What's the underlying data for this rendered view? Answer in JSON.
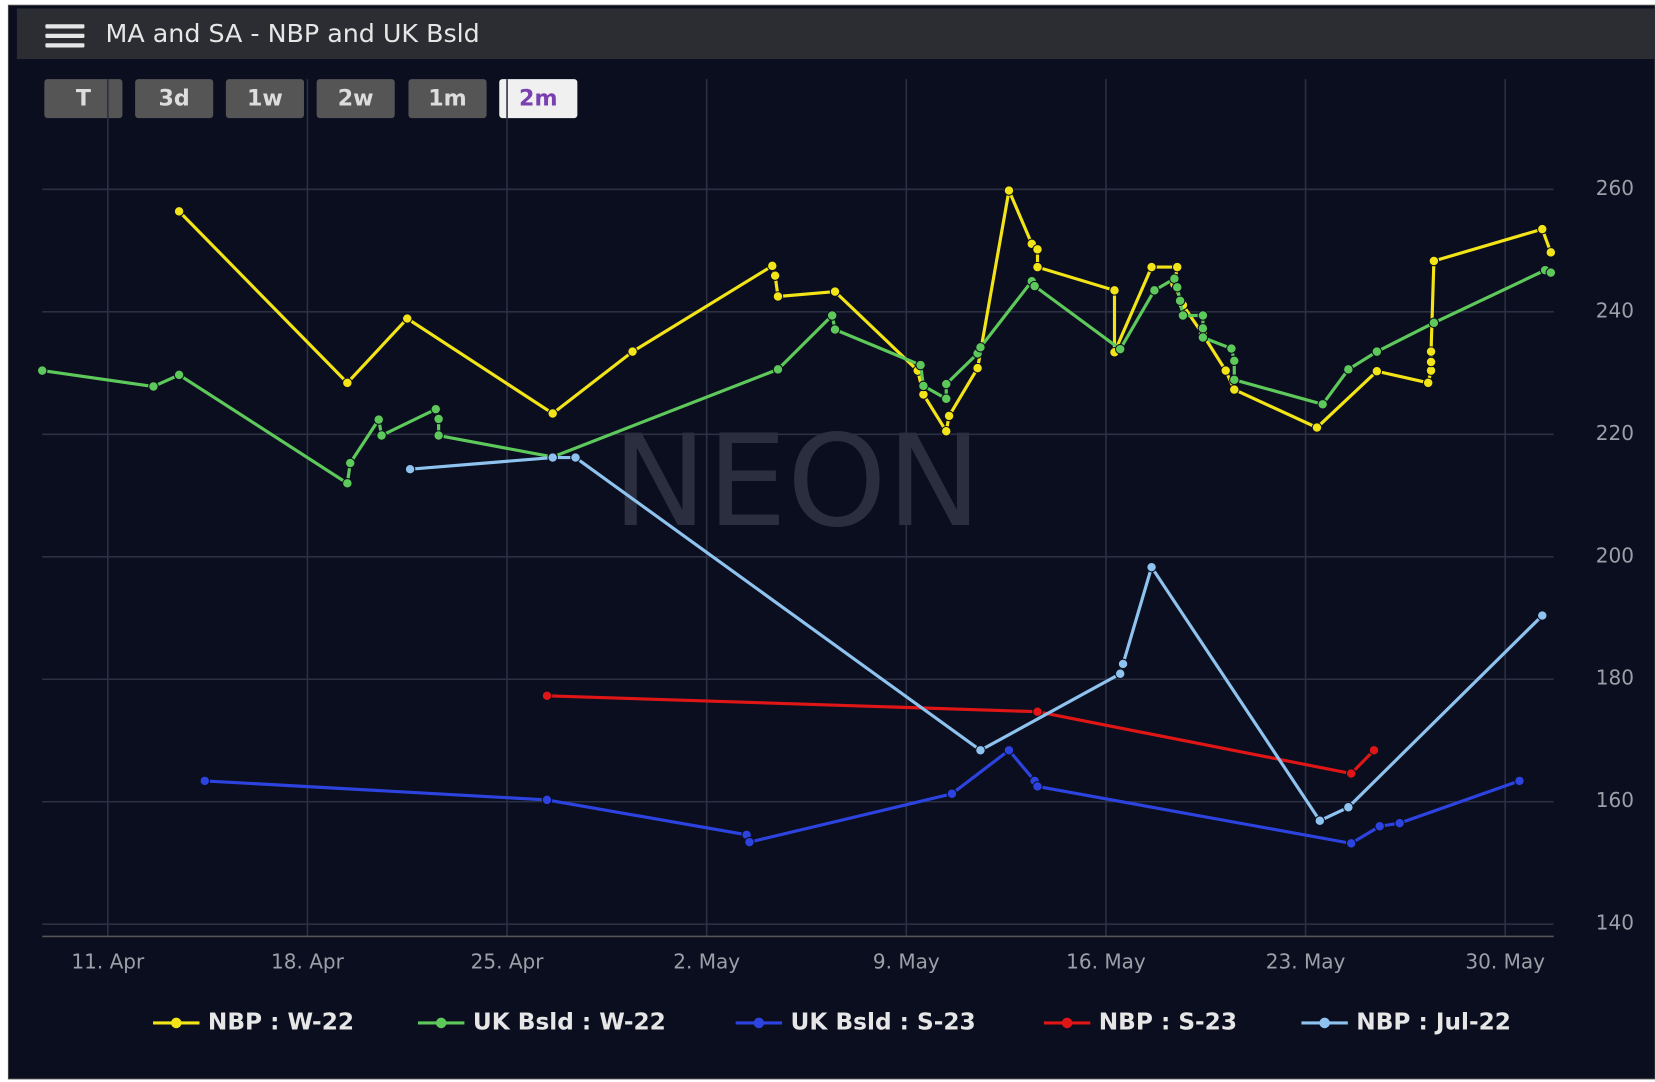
{
  "chart_data": {
    "type": "line",
    "title": "MA and SA - NBP and UK Bsld",
    "range_buttons": [
      "T",
      "3d",
      "1w",
      "2w",
      "1m",
      "2m"
    ],
    "selected_range": 5,
    "watermark": "NEON",
    "xlim": [
      98.7,
      151.7
    ],
    "xticks": [
      {
        "value": 101,
        "label": "11. Apr"
      },
      {
        "value": 108,
        "label": "18. Apr"
      },
      {
        "value": 115,
        "label": "25. Apr"
      },
      {
        "value": 122,
        "label": "2. May"
      },
      {
        "value": 129,
        "label": "9. May"
      },
      {
        "value": 136,
        "label": "16. May"
      },
      {
        "value": 143,
        "label": "23. May"
      },
      {
        "value": 150,
        "label": "30. May"
      }
    ],
    "ylim": [
      138,
      278
    ],
    "yticks": [
      140,
      160,
      180,
      200,
      220,
      240,
      260
    ],
    "grid": true,
    "series": [
      {
        "name": "NBP : W-22",
        "color": "#f2e416",
        "x": [
          103.5,
          109.4,
          111.5,
          116.6,
          119.4,
          124.3,
          124.4,
          124.5,
          126.5,
          129.4,
          129.6,
          130.4,
          130.5,
          131.5,
          132.6,
          133.4,
          133.6,
          133.6,
          136.3,
          136.3,
          137.6,
          138.5,
          138.4,
          138.7,
          139.4,
          140.2,
          140.5,
          143.4,
          145.5,
          147.3,
          147.4,
          147.4,
          147.4,
          147.5,
          151.3,
          151.6
        ],
        "values": [
          256.4,
          228.4,
          238.9,
          223.4,
          233.5,
          247.5,
          245.9,
          242.5,
          243.3,
          230.4,
          226.5,
          220.5,
          223.0,
          230.8,
          259.8,
          251.1,
          250.2,
          247.3,
          243.5,
          233.4,
          247.3,
          247.3,
          244.5,
          241.1,
          236.3,
          230.4,
          227.3,
          221.1,
          230.3,
          228.4,
          230.4,
          231.8,
          233.5,
          248.3,
          253.5,
          249.7
        ]
      },
      {
        "name": "UK Bsld : W-22",
        "color": "#5ec95b",
        "x": [
          98.7,
          102.6,
          103.5,
          109.4,
          109.5,
          110.5,
          110.6,
          112.5,
          112.6,
          112.6,
          116.6,
          124.5,
          126.4,
          126.5,
          129.5,
          129.6,
          130.4,
          130.4,
          131.5,
          131.6,
          133.4,
          133.5,
          136.5,
          137.7,
          138.4,
          138.5,
          138.6,
          138.7,
          139.4,
          139.4,
          139.4,
          140.4,
          140.5,
          140.5,
          143.6,
          144.5,
          145.5,
          147.5,
          151.4,
          151.6
        ],
        "values": [
          230.4,
          227.8,
          229.7,
          212.0,
          215.3,
          222.4,
          219.8,
          224.1,
          222.5,
          219.8,
          216.3,
          230.6,
          239.4,
          237.1,
          231.3,
          227.9,
          225.8,
          228.2,
          233.2,
          234.2,
          245.0,
          244.2,
          233.9,
          243.5,
          245.4,
          244.0,
          241.8,
          239.4,
          239.4,
          237.3,
          235.8,
          234.0,
          232.0,
          228.9,
          224.9,
          230.6,
          233.5,
          238.2,
          246.8,
          246.4
        ]
      },
      {
        "name": "UK Bsld : S-23",
        "color": "#2d43e0",
        "x": [
          104.4,
          116.4,
          123.4,
          123.5,
          130.6,
          132.6,
          133.5,
          133.6,
          144.6,
          145.6,
          146.3,
          150.5
        ],
        "values": [
          163.4,
          160.3,
          154.6,
          153.4,
          161.3,
          168.4,
          163.4,
          162.5,
          153.2,
          156.0,
          156.5,
          163.4
        ]
      },
      {
        "name": "NBP : S-23",
        "color": "#e01616",
        "x": [
          116.4,
          133.6,
          144.6,
          145.4
        ],
        "values": [
          177.3,
          174.7,
          164.6,
          168.4
        ]
      },
      {
        "name": "NBP : Jul-22",
        "color": "#8fc3ef",
        "x": [
          111.6,
          116.6,
          117.4,
          131.6,
          136.5,
          136.6,
          137.6,
          143.5,
          144.5,
          151.3
        ],
        "values": [
          214.3,
          216.2,
          216.2,
          168.4,
          180.9,
          182.5,
          198.3,
          156.9,
          159.1,
          190.4
        ]
      }
    ]
  }
}
